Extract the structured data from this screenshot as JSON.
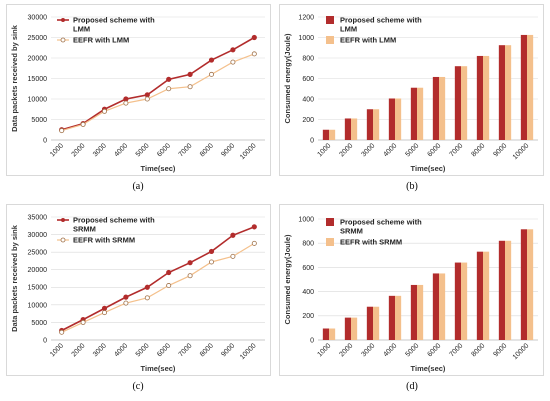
{
  "colors": {
    "proposed": "#b22c2c",
    "eefr": "#f4c08c",
    "grid": "#d9d9d9",
    "axis": "#bfbfbf"
  },
  "captions": [
    "(a)",
    "(b)",
    "(c)",
    "(d)"
  ],
  "chart_data": [
    {
      "type": "line",
      "xlabel": "Time(sec)",
      "ylabel": "Data packets received by sink",
      "x": [
        1000,
        2000,
        3000,
        4000,
        5000,
        6000,
        7000,
        8000,
        9000,
        10000
      ],
      "ylim": [
        0,
        30000
      ],
      "yticks": [
        0,
        5000,
        10000,
        15000,
        20000,
        25000,
        30000
      ],
      "grid": true,
      "legend_position": "top-left",
      "series": [
        {
          "name": "Proposed scheme with LMM",
          "legend_lines": [
            "Proposed scheme with",
            "LMM"
          ],
          "values": [
            2500,
            4000,
            7500,
            10000,
            11000,
            14800,
            16000,
            19500,
            22000,
            25000
          ]
        },
        {
          "name": "EEFR with LMM",
          "legend_lines": [
            "EEFR with LMM"
          ],
          "values": [
            2300,
            3800,
            7000,
            9000,
            10000,
            12500,
            13000,
            16000,
            19000,
            21000
          ]
        }
      ]
    },
    {
      "type": "bar",
      "xlabel": "Time(sec)",
      "ylabel": "Consumed energy(Joule)",
      "categories": [
        "1000",
        "2000",
        "3000",
        "4000",
        "5000",
        "6000",
        "7000",
        "8000",
        "9000",
        "10000"
      ],
      "ylim": [
        0,
        1200
      ],
      "yticks": [
        0,
        200,
        400,
        600,
        800,
        1000,
        1200
      ],
      "grid": true,
      "legend_position": "top-left",
      "series": [
        {
          "name": "Proposed scheme with LMM",
          "legend_lines": [
            "Proposed scheme with",
            "LMM"
          ],
          "values": [
            100,
            210,
            300,
            405,
            510,
            615,
            720,
            820,
            925,
            1025
          ]
        },
        {
          "name": "EEFR with LMM",
          "legend_lines": [
            "EEFR with LMM"
          ],
          "values": [
            100,
            210,
            300,
            405,
            510,
            615,
            720,
            820,
            925,
            1025
          ]
        }
      ]
    },
    {
      "type": "line",
      "xlabel": "Time(sec)",
      "ylabel": "Data packets received by sink",
      "x": [
        1000,
        2000,
        3000,
        4000,
        5000,
        6000,
        7000,
        8000,
        9000,
        10000
      ],
      "ylim": [
        0,
        35000
      ],
      "yticks": [
        0,
        5000,
        10000,
        15000,
        20000,
        25000,
        30000,
        35000
      ],
      "grid": true,
      "legend_position": "top-left",
      "series": [
        {
          "name": "Proposed scheme with SRMM",
          "legend_lines": [
            "Proposed scheme with",
            "SRMM"
          ],
          "values": [
            2700,
            5800,
            9000,
            12200,
            15000,
            19200,
            22000,
            25200,
            29800,
            32200
          ]
        },
        {
          "name": "EEFR with SRMM",
          "legend_lines": [
            "EEFR with SRMM"
          ],
          "values": [
            2200,
            5000,
            7800,
            10500,
            12000,
            15500,
            18300,
            22200,
            23800,
            27500
          ]
        }
      ]
    },
    {
      "type": "bar",
      "xlabel": "Time(sec)",
      "ylabel": "Consumed energy(Joule)",
      "categories": [
        "1000",
        "2000",
        "3000",
        "4000",
        "5000",
        "6000",
        "7000",
        "8000",
        "9000",
        "10000"
      ],
      "ylim": [
        0,
        1000
      ],
      "yticks": [
        0,
        200,
        400,
        600,
        800,
        1000
      ],
      "grid": true,
      "legend_position": "top-left",
      "series": [
        {
          "name": "Proposed scheme with SRMM",
          "legend_lines": [
            "Proposed scheme with",
            "SRMM"
          ],
          "values": [
            95,
            185,
            275,
            365,
            455,
            550,
            640,
            730,
            820,
            915
          ]
        },
        {
          "name": "EEFR with SRMM",
          "legend_lines": [
            "EEFR with SRMM"
          ],
          "values": [
            95,
            185,
            275,
            365,
            455,
            550,
            640,
            730,
            820,
            915
          ]
        }
      ]
    }
  ]
}
